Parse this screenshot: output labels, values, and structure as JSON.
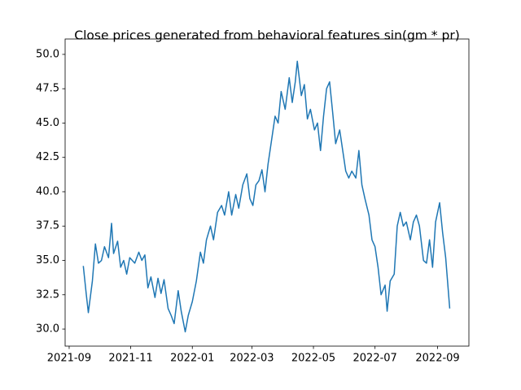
{
  "chart_data": {
    "type": "line",
    "title": "Close prices generated from behavioral features sin(gm * pr)",
    "x": [
      18885,
      18888,
      18890,
      18894,
      18897,
      18900,
      18903,
      18906,
      18910,
      18913,
      18915,
      18919,
      18922,
      18925,
      18928,
      18931,
      18936,
      18940,
      18943,
      18946,
      18949,
      18952,
      18956,
      18959,
      18962,
      18965,
      18969,
      18972,
      18975,
      18979,
      18982,
      18986,
      18989,
      18993,
      18997,
      19001,
      19004,
      19007,
      19011,
      19014,
      19018,
      19022,
      19025,
      19029,
      19032,
      19036,
      19039,
      19043,
      19047,
      19050,
      19053,
      19056,
      19059,
      19062,
      19065,
      19068,
      19072,
      19075,
      19078,
      19081,
      19085,
      19089,
      19092,
      19095,
      19097,
      19101,
      19104,
      19107,
      19110,
      19114,
      19117,
      19120,
      19123,
      19126,
      19129,
      19132,
      19135,
      19139,
      19142,
      19145,
      19148,
      19151,
      19155,
      19158,
      19161,
      19164,
      19168,
      19171,
      19174,
      19177,
      19180,
      19184,
      19186,
      19189,
      19193,
      19196,
      19199,
      19202,
      19205,
      19209,
      19212,
      19215,
      19218,
      19222,
      19225,
      19228,
      19231,
      19234,
      19238,
      19241,
      19244,
      19248
    ],
    "series": [
      {
        "color": "#1f77b4",
        "values": [
          34.6,
          32.5,
          31.2,
          33.5,
          36.2,
          34.8,
          35.0,
          36.0,
          35.2,
          37.7,
          35.5,
          36.4,
          34.5,
          35.0,
          34.0,
          35.2,
          34.8,
          35.6,
          35.0,
          35.4,
          33.0,
          33.8,
          32.3,
          33.7,
          32.6,
          33.6,
          31.5,
          31.0,
          30.4,
          32.8,
          31.3,
          29.8,
          31.0,
          32.0,
          33.5,
          35.6,
          34.8,
          36.5,
          37.5,
          36.5,
          38.5,
          39.0,
          38.3,
          40.0,
          38.3,
          39.8,
          38.8,
          40.5,
          41.3,
          39.5,
          39.0,
          40.5,
          40.8,
          41.6,
          40.0,
          42.0,
          44.0,
          45.5,
          45.0,
          47.3,
          46.0,
          48.3,
          46.5,
          48.0,
          49.5,
          47.0,
          47.8,
          45.3,
          46.0,
          44.5,
          45.0,
          43.0,
          45.5,
          47.5,
          48.0,
          45.8,
          43.5,
          44.5,
          43.0,
          41.5,
          41.0,
          41.5,
          41.0,
          43.0,
          40.5,
          39.5,
          38.3,
          36.5,
          36.0,
          34.5,
          32.5,
          33.2,
          31.3,
          33.5,
          34.0,
          37.5,
          38.5,
          37.5,
          37.8,
          36.5,
          37.8,
          38.3,
          37.5,
          35.0,
          34.8,
          36.5,
          34.5,
          37.8,
          39.2,
          37.0,
          35.2,
          31.5
        ]
      }
    ],
    "xlim": [
      18867,
      19267
    ],
    "xticks": [
      {
        "value": 18871,
        "label": "2021-09"
      },
      {
        "value": 18932,
        "label": "2021-11"
      },
      {
        "value": 18993,
        "label": "2022-01"
      },
      {
        "value": 19052,
        "label": "2022-03"
      },
      {
        "value": 19113,
        "label": "2022-05"
      },
      {
        "value": 19174,
        "label": "2022-07"
      },
      {
        "value": 19236,
        "label": "2022-09"
      }
    ],
    "ylim": [
      28.76,
      51.12
    ],
    "yticks": [
      {
        "value": 30,
        "label": "30.0"
      },
      32.5,
      {
        "value": 35,
        "label": "35.0"
      },
      37.5,
      {
        "value": 40,
        "label": "40.0"
      },
      42.5,
      {
        "value": 45,
        "label": "45.0"
      },
      47.5,
      {
        "value": 50,
        "label": "50.0"
      }
    ],
    "grid": false
  }
}
